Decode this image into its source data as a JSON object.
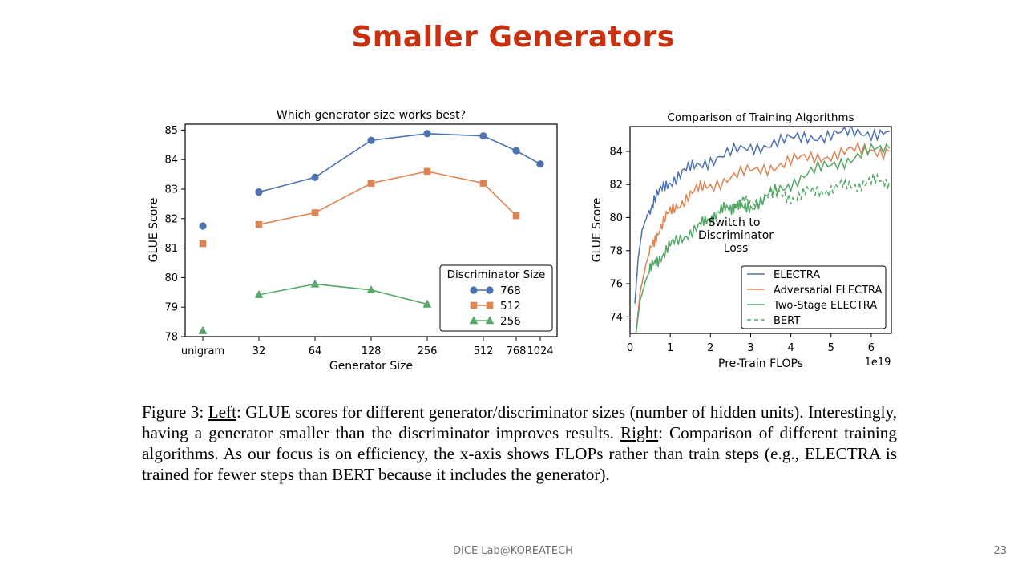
{
  "slide": {
    "title": "Smaller Generators",
    "footer": "DICE  Lab@KOREATECH",
    "page_number": "23"
  },
  "caption": {
    "figure_label": "Figure 3: ",
    "left_word": "Left",
    "part1": ": GLUE scores for different generator/discriminator sizes (number of hidden units). Interestingly, having a generator smaller than the discriminator improves results. ",
    "right_word": "Right",
    "part2": ": Comparison of different training algorithms. As our focus is on efficiency, the x-axis shows FLOPs rather than train steps (e.g., ELECTRA is trained for fewer steps than BERT because it includes the generator)."
  },
  "colors": {
    "title": "#c8310f",
    "blue": "#4c72b0",
    "orange": "#dd8452",
    "green": "#55a868"
  },
  "chart_data": [
    {
      "type": "line",
      "title": "Which generator size works best?",
      "xlabel": "Generator Size",
      "ylabel": "GLUE Score",
      "categories": [
        "unigram",
        "32",
        "64",
        "128",
        "256",
        "512",
        "768",
        "1024"
      ],
      "ylim": [
        78,
        85.2
      ],
      "yticks": [
        78,
        79,
        80,
        81,
        82,
        83,
        84,
        85
      ],
      "legend_title": "Discriminator Size",
      "legend_position": "lower-right",
      "series": [
        {
          "name": "768",
          "marker": "circle",
          "color": "#4c72b0",
          "x": [
            "unigram",
            "32",
            "64",
            "128",
            "256",
            "512",
            "768",
            "1024"
          ],
          "values": [
            81.75,
            82.9,
            83.4,
            84.65,
            84.88,
            84.8,
            84.3,
            83.85
          ],
          "connect_from": 1
        },
        {
          "name": "512",
          "marker": "square",
          "color": "#dd8452",
          "x": [
            "unigram",
            "32",
            "64",
            "128",
            "256",
            "512",
            "768"
          ],
          "values": [
            81.15,
            81.8,
            82.2,
            83.2,
            83.6,
            83.2,
            82.1
          ],
          "connect_from": 1
        },
        {
          "name": "256",
          "marker": "triangle",
          "color": "#55a868",
          "x": [
            "unigram",
            "32",
            "64",
            "128",
            "256"
          ],
          "values": [
            78.2,
            79.42,
            79.78,
            79.58,
            79.1
          ],
          "connect_from": 1
        }
      ]
    },
    {
      "type": "line",
      "title": "Comparison of Training Algorithms",
      "xlabel": "Pre-Train FLOPs",
      "ylabel": "GLUE Score",
      "x_multiplier_label": "1e19",
      "xlim": [
        0,
        6.5
      ],
      "ylim": [
        73,
        85.5
      ],
      "xticks": [
        0,
        1,
        2,
        3,
        4,
        5,
        6
      ],
      "yticks": [
        74,
        76,
        78,
        80,
        82,
        84
      ],
      "legend_position": "lower-right",
      "annotation": {
        "lines": [
          "Switch to",
          "Discriminator",
          "Loss"
        ],
        "x": 2.6,
        "y": 80.7
      },
      "series": [
        {
          "name": "ELECTRA",
          "color": "#4c72b0",
          "dash": "solid",
          "x": [
            0.12,
            0.2,
            0.3,
            0.45,
            0.6,
            0.8,
            1.0,
            1.3,
            1.6,
            2.0,
            2.5,
            3.0,
            3.5,
            4.0,
            4.5,
            5.0,
            5.5,
            6.0,
            6.45
          ],
          "values": [
            74.8,
            77.5,
            79.2,
            80.3,
            81.1,
            81.7,
            82.2,
            82.7,
            83.1,
            83.5,
            83.9,
            84.2,
            84.5,
            84.7,
            84.9,
            85.0,
            85.1,
            85.15,
            85.2
          ]
        },
        {
          "name": "Adversarial ELECTRA",
          "color": "#dd8452",
          "dash": "solid",
          "x": [
            0.15,
            0.25,
            0.4,
            0.55,
            0.7,
            0.9,
            1.1,
            1.4,
            1.7,
            2.0,
            2.5,
            3.0,
            3.5,
            4.0,
            4.5,
            5.0,
            5.5,
            6.0,
            6.45
          ],
          "values": [
            73.0,
            75.5,
            77.2,
            78.3,
            79.2,
            80.0,
            80.6,
            81.2,
            81.7,
            82.0,
            82.4,
            82.8,
            83.1,
            83.4,
            83.6,
            83.8,
            84.0,
            84.1,
            84.0
          ]
        },
        {
          "name": "Two-Stage ELECTRA",
          "color": "#55a868",
          "dash": "solid",
          "x": [
            0.15,
            0.25,
            0.4,
            0.55,
            0.7,
            0.9,
            1.1,
            1.4,
            1.7,
            1.9,
            2.1,
            2.3,
            2.5,
            2.65,
            2.8,
            3.0,
            3.3,
            3.6,
            4.0,
            4.5,
            5.0,
            5.5,
            6.0,
            6.45
          ],
          "values": [
            73.0,
            75.0,
            76.3,
            77.0,
            77.5,
            78.0,
            78.5,
            79.0,
            79.4,
            79.8,
            80.2,
            80.4,
            80.6,
            80.8,
            80.5,
            80.7,
            81.0,
            81.6,
            82.1,
            82.7,
            83.2,
            83.6,
            84.0,
            84.2
          ]
        },
        {
          "name": "BERT",
          "color": "#55a868",
          "dash": "dashed",
          "x": [
            2.65,
            2.9,
            3.2,
            3.5,
            3.8,
            4.1,
            4.4,
            4.7,
            5.0,
            5.3,
            5.6,
            5.9,
            6.2,
            6.45
          ],
          "values": [
            80.8,
            80.9,
            81.1,
            81.3,
            81.4,
            81.2,
            81.5,
            81.6,
            81.7,
            81.9,
            82.0,
            82.1,
            82.2,
            82.2
          ]
        }
      ]
    }
  ]
}
